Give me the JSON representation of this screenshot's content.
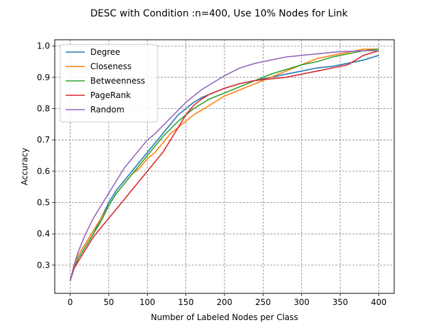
{
  "chart_data": {
    "type": "line",
    "title": "DESC with Condition :n=400, Use 10% Nodes for Link",
    "xlabel": "Number of Labeled Nodes per Class",
    "ylabel": "Accuracy",
    "xlim": [
      -20,
      420
    ],
    "ylim": [
      0.21,
      1.02
    ],
    "xticks": [
      0,
      50,
      100,
      150,
      200,
      250,
      300,
      350,
      400
    ],
    "yticks": [
      0.3,
      0.4,
      0.5,
      0.6,
      0.7,
      0.8,
      0.9,
      1.0
    ],
    "ytick_labels": [
      "0.3",
      "0.4",
      "0.5",
      "0.6",
      "0.7",
      "0.8",
      "0.9",
      "1.0"
    ],
    "grid": true,
    "grid_style": "dashed",
    "legend_position": "top-left",
    "series": [
      {
        "name": "Degree",
        "color": "#1f77b4",
        "x": [
          0,
          5,
          10,
          20,
          30,
          40,
          50,
          60,
          70,
          80,
          90,
          100,
          110,
          120,
          130,
          140,
          150,
          160,
          170,
          180,
          190,
          200,
          220,
          240,
          260,
          280,
          300,
          320,
          340,
          360,
          380,
          400
        ],
        "y": [
          0.25,
          0.29,
          0.32,
          0.36,
          0.4,
          0.45,
          0.5,
          0.54,
          0.57,
          0.6,
          0.63,
          0.66,
          0.69,
          0.72,
          0.75,
          0.78,
          0.8,
          0.82,
          0.835,
          0.845,
          0.855,
          0.865,
          0.88,
          0.89,
          0.9,
          0.91,
          0.92,
          0.93,
          0.935,
          0.945,
          0.955,
          0.97
        ]
      },
      {
        "name": "Closeness",
        "color": "#ff7f0e",
        "x": [
          0,
          5,
          10,
          20,
          30,
          40,
          50,
          60,
          70,
          80,
          90,
          100,
          110,
          120,
          130,
          140,
          150,
          160,
          170,
          180,
          190,
          200,
          220,
          240,
          260,
          280,
          300,
          320,
          340,
          360,
          380,
          400
        ],
        "y": [
          0.25,
          0.3,
          0.33,
          0.37,
          0.41,
          0.45,
          0.49,
          0.53,
          0.56,
          0.59,
          0.61,
          0.64,
          0.66,
          0.69,
          0.72,
          0.74,
          0.76,
          0.78,
          0.795,
          0.81,
          0.825,
          0.84,
          0.86,
          0.88,
          0.9,
          0.92,
          0.94,
          0.96,
          0.97,
          0.98,
          0.99,
          0.99
        ]
      },
      {
        "name": "Betweenness",
        "color": "#2ca02c",
        "x": [
          0,
          5,
          10,
          20,
          30,
          40,
          50,
          60,
          70,
          80,
          90,
          100,
          110,
          120,
          130,
          140,
          150,
          160,
          170,
          180,
          190,
          200,
          220,
          240,
          260,
          280,
          300,
          320,
          340,
          360,
          380,
          400
        ],
        "y": [
          0.25,
          0.29,
          0.32,
          0.36,
          0.4,
          0.44,
          0.49,
          0.53,
          0.56,
          0.59,
          0.62,
          0.65,
          0.68,
          0.71,
          0.735,
          0.76,
          0.78,
          0.8,
          0.815,
          0.83,
          0.84,
          0.85,
          0.87,
          0.89,
          0.91,
          0.925,
          0.94,
          0.95,
          0.965,
          0.975,
          0.985,
          0.99
        ]
      },
      {
        "name": "PageRank",
        "color": "#d62728",
        "x": [
          0,
          5,
          10,
          20,
          30,
          40,
          50,
          60,
          70,
          80,
          90,
          100,
          110,
          120,
          130,
          140,
          150,
          160,
          170,
          180,
          190,
          200,
          220,
          240,
          260,
          280,
          300,
          320,
          340,
          360,
          380,
          400
        ],
        "y": [
          0.25,
          0.29,
          0.31,
          0.35,
          0.39,
          0.42,
          0.45,
          0.48,
          0.51,
          0.54,
          0.57,
          0.6,
          0.63,
          0.66,
          0.7,
          0.74,
          0.78,
          0.81,
          0.83,
          0.845,
          0.855,
          0.865,
          0.88,
          0.89,
          0.895,
          0.9,
          0.91,
          0.92,
          0.93,
          0.94,
          0.97,
          0.985
        ]
      },
      {
        "name": "Random",
        "color": "#9467bd",
        "x": [
          0,
          5,
          10,
          20,
          30,
          40,
          50,
          60,
          70,
          80,
          90,
          100,
          110,
          120,
          130,
          140,
          150,
          160,
          170,
          180,
          190,
          200,
          220,
          240,
          260,
          280,
          300,
          320,
          340,
          360,
          380,
          400
        ],
        "y": [
          0.25,
          0.3,
          0.34,
          0.4,
          0.45,
          0.49,
          0.53,
          0.57,
          0.61,
          0.64,
          0.67,
          0.7,
          0.72,
          0.745,
          0.77,
          0.795,
          0.82,
          0.84,
          0.86,
          0.875,
          0.89,
          0.905,
          0.93,
          0.945,
          0.955,
          0.965,
          0.97,
          0.975,
          0.98,
          0.983,
          0.985,
          0.985
        ]
      }
    ]
  }
}
